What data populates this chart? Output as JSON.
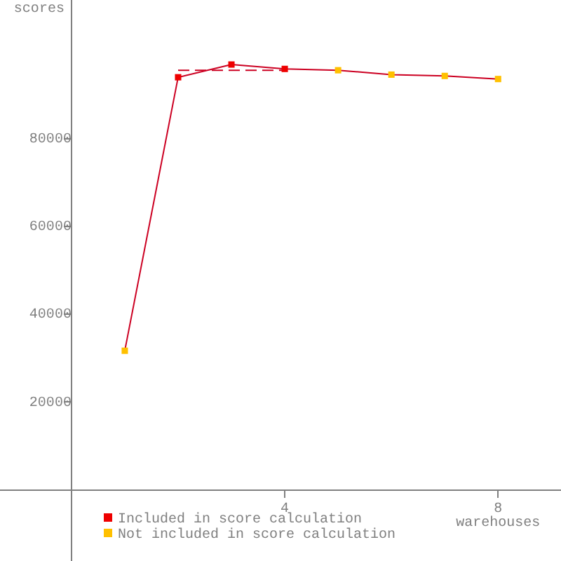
{
  "chart_data": {
    "type": "line",
    "ylabel": "scores",
    "xlabel": "warehouses",
    "x": [
      1,
      2,
      3,
      4,
      5,
      6,
      7,
      8
    ],
    "xlim": [
      -1.34,
      9.18
    ],
    "xticks": [
      4,
      8
    ],
    "ylim": [
      -16200,
      111600
    ],
    "yticks": [
      20000,
      40000,
      60000,
      80000
    ],
    "marker": "square",
    "legend": "bottom left",
    "series": [
      {
        "type": "line",
        "color": "#cc0022",
        "marker": "none",
        "values": [
          31700,
          94000,
          96900,
          95900,
          95600,
          94600,
          94300,
          93600
        ]
      },
      {
        "type": "line",
        "color": "#cc0022",
        "marker": "none",
        "line_style": "dashed",
        "x": [
          2,
          4
        ],
        "values": [
          95600,
          95600
        ]
      },
      {
        "type": "scatter",
        "name": "Included in score calculation",
        "color": "#ee0000",
        "values": [
          null,
          94000,
          96900,
          95900,
          null,
          null,
          null,
          null
        ]
      },
      {
        "type": "scatter",
        "name": "Not included in score calculation",
        "color": "#ffc000",
        "values": [
          31700,
          null,
          null,
          null,
          95600,
          94600,
          94300,
          93600
        ]
      }
    ]
  }
}
